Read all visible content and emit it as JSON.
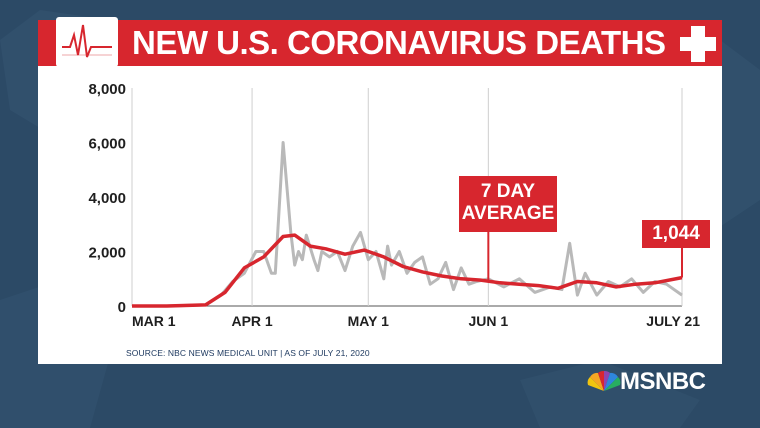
{
  "header": {
    "title": "NEW U.S. CORONAVIRUS DEATHS"
  },
  "footer": {
    "source": "SOURCE: NBC NEWS MEDICAL UNIT | AS OF JULY 21, 2020",
    "network_logo": "MSNBC"
  },
  "icons": {
    "header_left": "ekg-heartbeat-icon",
    "header_right": "medical-cross-icon",
    "logo": "peacock-icon"
  },
  "colors": {
    "accent": "#d7262e",
    "daily_line": "#b9b9b9",
    "axis_text": "#1f1f1f",
    "background": "#2c4a66"
  },
  "chart_data": {
    "type": "line",
    "title": "NEW U.S. CORONAVIRUS DEATHS",
    "xlabel": "",
    "ylabel": "",
    "ylim": [
      0,
      8000
    ],
    "yticks": [
      0,
      2000,
      4000,
      6000,
      8000
    ],
    "ytick_labels": [
      "0",
      "2,000",
      "4,000",
      "6,000",
      "8,000"
    ],
    "xticks": [
      "2020-03-01",
      "2020-04-01",
      "2020-05-01",
      "2020-06-01",
      "2020-07-21"
    ],
    "xtick_labels": [
      "MAR 1",
      "APR 1",
      "MAY 1",
      "JUN 1",
      "JULY 21"
    ],
    "xlim": [
      "2020-03-01",
      "2020-07-21"
    ],
    "grid": false,
    "annotations": [
      {
        "text_lines": [
          "7 DAY",
          "AVERAGE"
        ],
        "target": "7-day average",
        "x": "2020-06-01"
      },
      {
        "text": "1,044",
        "target": "7-day average",
        "x": "2020-07-21"
      }
    ],
    "series": [
      {
        "x": [
          "2020-03-01",
          "2020-03-10",
          "2020-03-20",
          "2020-03-24",
          "2020-03-27",
          "2020-03-30",
          "2020-04-02",
          "2020-04-04",
          "2020-04-06",
          "2020-04-07",
          "2020-04-09",
          "2020-04-11",
          "2020-04-12",
          "2020-04-13",
          "2020-04-14",
          "2020-04-15",
          "2020-04-17",
          "2020-04-18",
          "2020-04-19",
          "2020-04-21",
          "2020-04-23",
          "2020-04-25",
          "2020-04-27",
          "2020-04-29",
          "2020-05-01",
          "2020-05-03",
          "2020-05-05",
          "2020-05-06",
          "2020-05-07",
          "2020-05-09",
          "2020-05-11",
          "2020-05-13",
          "2020-05-15",
          "2020-05-17",
          "2020-05-19",
          "2020-05-21",
          "2020-05-23",
          "2020-05-25",
          "2020-05-27",
          "2020-05-29",
          "2020-06-01",
          "2020-06-05",
          "2020-06-09",
          "2020-06-13",
          "2020-06-17",
          "2020-06-20",
          "2020-06-22",
          "2020-06-24",
          "2020-06-26",
          "2020-06-29",
          "2020-07-02",
          "2020-07-05",
          "2020-07-08",
          "2020-07-11",
          "2020-07-14",
          "2020-07-17",
          "2020-07-21"
        ],
        "values": [
          0,
          0,
          40,
          400,
          900,
          1200,
          2000,
          2000,
          1200,
          1200,
          6000,
          2700,
          1500,
          2000,
          1700,
          2600,
          1700,
          1300,
          2000,
          1800,
          2000,
          1300,
          2200,
          2700,
          1700,
          2000,
          1000,
          2200,
          1500,
          2000,
          1200,
          1600,
          1800,
          800,
          1000,
          1600,
          600,
          1400,
          800,
          900,
          1000,
          700,
          1000,
          500,
          700,
          600,
          2300,
          400,
          1200,
          400,
          900,
          700,
          1000,
          500,
          900,
          800,
          400
        ]
      },
      {
        "name": "7 DAY AVERAGE",
        "x": [
          "2020-03-01",
          "2020-03-10",
          "2020-03-20",
          "2020-03-25",
          "2020-03-30",
          "2020-04-04",
          "2020-04-09",
          "2020-04-12",
          "2020-04-16",
          "2020-04-20",
          "2020-04-25",
          "2020-04-30",
          "2020-05-05",
          "2020-05-10",
          "2020-05-15",
          "2020-05-20",
          "2020-05-25",
          "2020-05-30",
          "2020-06-04",
          "2020-06-09",
          "2020-06-14",
          "2020-06-19",
          "2020-06-24",
          "2020-06-29",
          "2020-07-04",
          "2020-07-09",
          "2020-07-14",
          "2020-07-21"
        ],
        "values": [
          0,
          0,
          40,
          500,
          1400,
          1800,
          2550,
          2600,
          2200,
          2100,
          1900,
          2050,
          1800,
          1450,
          1250,
          1100,
          1000,
          950,
          850,
          800,
          750,
          650,
          900,
          850,
          700,
          800,
          850,
          1044
        ]
      }
    ]
  }
}
